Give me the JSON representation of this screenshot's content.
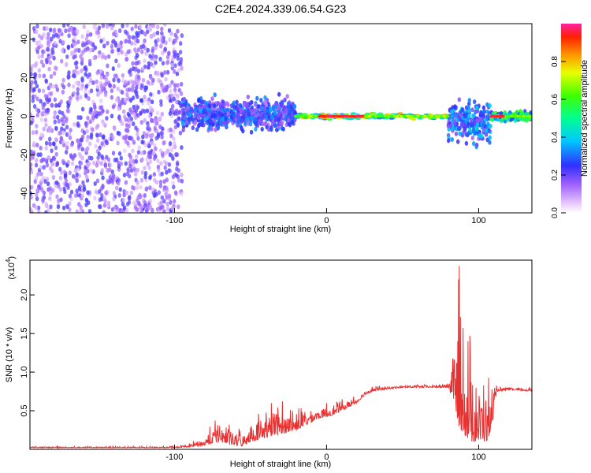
{
  "title": "C2E4.2024.339.06.54.G23",
  "chart_data": [
    {
      "type": "heatmap",
      "xlabel": "Height of straight line (km)",
      "ylabel": "Frequency (Hz)",
      "xlim": [
        -195,
        135
      ],
      "ylim": [
        -50,
        48
      ],
      "x_ticks": [
        "-100",
        "0",
        "100"
      ],
      "y_ticks": [
        "40",
        "20",
        "0",
        "-20",
        "-40"
      ],
      "colorbar": {
        "label": "Normalized spectral amplitude",
        "range": [
          0.0,
          1.0
        ],
        "ticks": [
          "0.0",
          "0.2",
          "0.4",
          "0.6",
          "0.8"
        ]
      },
      "regions": [
        {
          "x": [
            -195,
            -95
          ],
          "description_level": 0.15,
          "y_spread": [
            -50,
            48
          ]
        },
        {
          "x": [
            -95,
            -20
          ],
          "description_level": 0.3,
          "y_spread": [
            -10,
            12
          ]
        },
        {
          "x": [
            -20,
            80
          ],
          "description_level": 0.7,
          "y_spread": [
            -2,
            2
          ]
        },
        {
          "x": [
            80,
            108
          ],
          "description_level": 0.35,
          "y_spread": [
            -18,
            12
          ]
        },
        {
          "x": [
            108,
            135
          ],
          "description_level": 0.55,
          "y_spread": [
            -3,
            3
          ]
        }
      ]
    },
    {
      "type": "line",
      "xlabel": "Height of straight line (km)",
      "ylabel": "SNR (10 * v/v)",
      "yscale_label": "(x10",
      "yscale_exp": "4",
      "xlim": [
        -195,
        135
      ],
      "ylim": [
        0,
        2.45
      ],
      "x_ticks": [
        "-100",
        "0",
        "100"
      ],
      "y_ticks": [
        "2.0",
        "1.5",
        "1.0",
        "0.5"
      ],
      "color": "#e83030",
      "envelope": {
        "x": [
          -195,
          -100,
          -90,
          -80,
          -75,
          -70,
          -65,
          -60,
          -55,
          -50,
          -45,
          -40,
          -35,
          -30,
          -25,
          -20,
          -15,
          -10,
          -5,
          0,
          5,
          10,
          15,
          20,
          25,
          30,
          40,
          50,
          60,
          70,
          80,
          84,
          87,
          90,
          95,
          100,
          105,
          108,
          112,
          120,
          135
        ],
        "low": [
          0.02,
          0.02,
          0.03,
          0.05,
          0.08,
          0.1,
          0.06,
          0.05,
          0.04,
          0.1,
          0.12,
          0.15,
          0.18,
          0.2,
          0.22,
          0.25,
          0.3,
          0.35,
          0.4,
          0.42,
          0.45,
          0.5,
          0.55,
          0.6,
          0.7,
          0.75,
          0.78,
          0.8,
          0.8,
          0.8,
          0.8,
          0.6,
          0.3,
          0.2,
          0.1,
          0.1,
          0.1,
          0.2,
          0.75,
          0.77,
          0.75
        ],
        "high": [
          0.04,
          0.04,
          0.08,
          0.2,
          0.35,
          0.45,
          0.35,
          0.3,
          0.3,
          0.45,
          0.55,
          0.6,
          0.7,
          0.65,
          0.6,
          0.55,
          0.58,
          0.6,
          0.55,
          0.62,
          0.6,
          0.65,
          0.68,
          0.72,
          0.8,
          0.82,
          0.83,
          0.83,
          0.84,
          0.84,
          0.86,
          1.6,
          2.45,
          1.8,
          1.5,
          1.2,
          1.1,
          0.9,
          0.82,
          0.8,
          0.8
        ]
      }
    }
  ]
}
